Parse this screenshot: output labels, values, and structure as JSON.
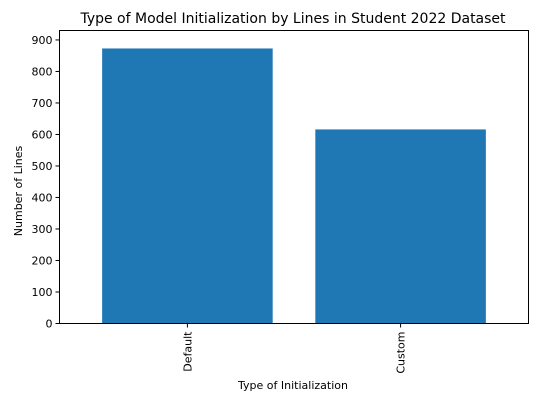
{
  "chart_data": {
    "type": "bar",
    "title": "Type of Model Initialization by Lines in Student 2022 Dataset",
    "xlabel": "Type of Initialization",
    "ylabel": "Number of Lines",
    "categories": [
      "Default",
      "Custom"
    ],
    "values": [
      873,
      616
    ],
    "ylim": [
      0,
      930
    ],
    "yticks": [
      0,
      100,
      200,
      300,
      400,
      500,
      600,
      700,
      800,
      900
    ],
    "bar_color": "#1f77b4",
    "grid": false,
    "legend": "none",
    "xtick_rotation": "vertical"
  }
}
